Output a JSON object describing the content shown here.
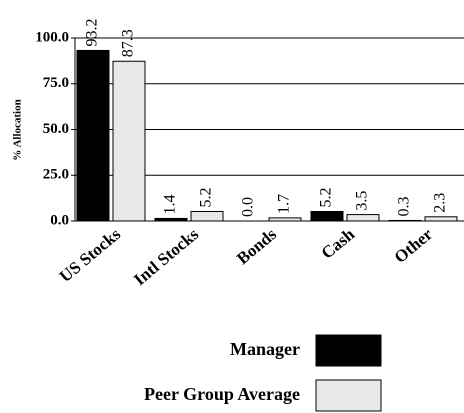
{
  "chart_data": {
    "type": "bar",
    "y_label": "% Allocation",
    "categories": [
      "US Stocks",
      "Intl Stocks",
      "Bonds",
      "Cash",
      "Other"
    ],
    "series": [
      {
        "name": "Manager",
        "color": "#000000",
        "values": [
          93.2,
          1.4,
          0.0,
          5.2,
          0.3
        ],
        "value_labels": [
          "93.2",
          "1.4",
          "0.0",
          "5.2",
          "0.3"
        ]
      },
      {
        "name": "Peer Group Average",
        "color": "#e8e8e8",
        "values": [
          87.3,
          5.2,
          1.7,
          3.5,
          2.3
        ],
        "value_labels": [
          "87.3",
          "5.2",
          "1.7",
          "3.5",
          "2.3"
        ]
      }
    ],
    "ylim": [
      0,
      100
    ],
    "yticks": [
      {
        "value": 0,
        "label": "0.0"
      },
      {
        "value": 25,
        "label": "25.0"
      },
      {
        "value": 50,
        "label": "50.0"
      },
      {
        "value": 75,
        "label": "75.0"
      },
      {
        "value": 100,
        "label": "100.0"
      }
    ],
    "grid": true
  }
}
